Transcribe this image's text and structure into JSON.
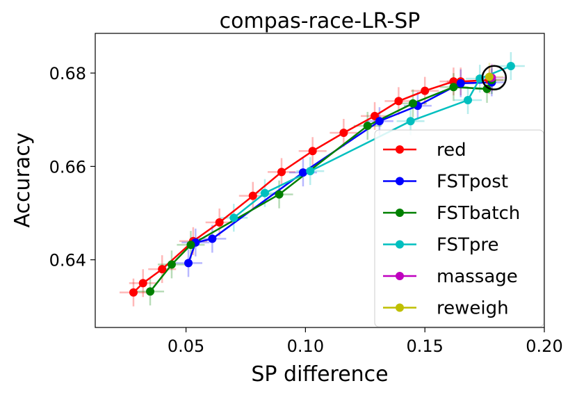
{
  "chart_data": {
    "type": "line",
    "title": "compas-race-LR-SP",
    "xlabel": "SP difference",
    "ylabel": "Accuracy",
    "xlim": [
      0.012,
      0.2
    ],
    "ylim": [
      0.6255,
      0.6885
    ],
    "xticks": [
      0.05,
      0.1,
      0.15,
      0.2
    ],
    "xtick_labels": [
      "0.05",
      "0.10",
      "0.15",
      "0.20"
    ],
    "yticks": [
      0.64,
      0.66,
      0.68
    ],
    "ytick_labels": [
      "0.64",
      "0.66",
      "0.68"
    ],
    "grid": false,
    "legend_position": "bottom-right",
    "error_bars": true,
    "highlight_marker": {
      "x": 0.179,
      "y": 0.679,
      "shape": "open circle"
    },
    "series": [
      {
        "name": "red",
        "color": "#ff0000",
        "x": [
          0.028,
          0.032,
          0.04,
          0.053,
          0.064,
          0.078,
          0.09,
          0.103,
          0.116,
          0.129,
          0.139,
          0.15,
          0.162,
          0.165,
          0.177
        ],
        "y": [
          0.633,
          0.635,
          0.638,
          0.644,
          0.648,
          0.6537,
          0.6588,
          0.6633,
          0.6672,
          0.6708,
          0.674,
          0.6762,
          0.6782,
          0.6782,
          0.6785
        ]
      },
      {
        "name": "FSTpost",
        "color": "#0000ff",
        "x": [
          0.051,
          0.054,
          0.061,
          0.099,
          0.131,
          0.147,
          0.165,
          0.178
        ],
        "y": [
          0.6393,
          0.6437,
          0.6445,
          0.6587,
          0.6697,
          0.673,
          0.6778,
          0.678
        ]
      },
      {
        "name": "FSTbatch",
        "color": "#008000",
        "x": [
          0.035,
          0.044,
          0.052,
          0.089,
          0.126,
          0.145,
          0.162,
          0.176,
          0.178
        ],
        "y": [
          0.6332,
          0.639,
          0.6432,
          0.654,
          0.6687,
          0.6735,
          0.677,
          0.6766,
          0.6785
        ]
      },
      {
        "name": "FSTpre",
        "color": "#00bfbf",
        "x": [
          0.07,
          0.083,
          0.102,
          0.144,
          0.168,
          0.173,
          0.186
        ],
        "y": [
          0.649,
          0.6543,
          0.659,
          0.6697,
          0.6742,
          0.6788,
          0.6815
        ]
      },
      {
        "name": "massage",
        "color": "#bf00bf",
        "x": [
          0.178
        ],
        "y": [
          0.679
        ]
      },
      {
        "name": "reweigh",
        "color": "#bfbf00",
        "x": [
          0.177
        ],
        "y": [
          0.6792
        ]
      }
    ]
  }
}
